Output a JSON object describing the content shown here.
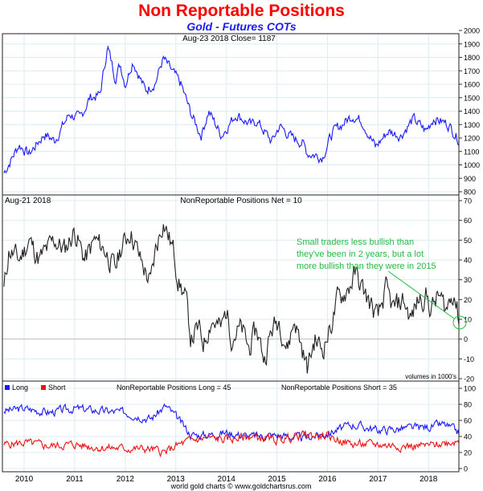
{
  "header": {
    "title": "Non Reportable Positions",
    "subtitle": "Gold - Futures COTs"
  },
  "footer": "world gold charts © www.goldchartsrus.com",
  "colors": {
    "title": "#ff0000",
    "subtitle": "#1a1aff",
    "price": "#1a1aff",
    "net": "#222222",
    "long": "#1a1aff",
    "short": "#ee1111",
    "annotation": "#22bb44",
    "grid": "#dcecf5"
  },
  "chart_data": [
    {
      "type": "line",
      "panel": "price",
      "label": "Aug-23  2018   Close= 1187",
      "ylim": [
        800,
        2000
      ],
      "yticks": [
        800,
        900,
        1000,
        1100,
        1200,
        1300,
        1400,
        1500,
        1600,
        1700,
        1800,
        1900,
        2000
      ],
      "x": [
        2009.6,
        2009.9,
        2010.1,
        2010.4,
        2010.6,
        2010.9,
        2011.1,
        2011.3,
        2011.5,
        2011.65,
        2011.8,
        2011.9,
        2012.0,
        2012.15,
        2012.4,
        2012.6,
        2012.75,
        2012.95,
        2013.1,
        2013.3,
        2013.5,
        2013.65,
        2013.9,
        2014.2,
        2014.5,
        2014.6,
        2014.9,
        2015.05,
        2015.3,
        2015.5,
        2015.6,
        2015.9,
        2016.1,
        2016.5,
        2016.7,
        2016.95,
        2017.2,
        2017.45,
        2017.7,
        2017.95,
        2018.1,
        2018.4,
        2018.6
      ],
      "values": [
        940,
        1150,
        1080,
        1230,
        1180,
        1380,
        1340,
        1500,
        1520,
        1880,
        1650,
        1750,
        1600,
        1780,
        1550,
        1620,
        1790,
        1680,
        1600,
        1380,
        1220,
        1400,
        1220,
        1380,
        1290,
        1330,
        1170,
        1290,
        1200,
        1170,
        1090,
        1060,
        1240,
        1370,
        1320,
        1130,
        1250,
        1220,
        1340,
        1250,
        1350,
        1300,
        1187
      ]
    },
    {
      "type": "line",
      "panel": "net",
      "label_left": "Aug-21  2018",
      "label": "NonReportable Positions Net = 10",
      "ylim": [
        -20,
        70
      ],
      "yticks": [
        -20,
        -10,
        0,
        10,
        20,
        30,
        40,
        50,
        60,
        70
      ],
      "note": "volumes in 1000's",
      "annotation": [
        "Small traders less bullish than",
        "they've been in 2 years, but a lot",
        "more bullish than they were in 2015"
      ],
      "x": [
        2009.6,
        2009.7,
        2009.9,
        2010.1,
        2010.3,
        2010.6,
        2010.8,
        2011.0,
        2011.2,
        2011.4,
        2011.6,
        2011.8,
        2011.9,
        2012.1,
        2012.3,
        2012.5,
        2012.6,
        2012.75,
        2012.95,
        2013.05,
        2013.2,
        2013.3,
        2013.45,
        2013.55,
        2013.7,
        2013.9,
        2014.0,
        2014.1,
        2014.3,
        2014.45,
        2014.6,
        2014.75,
        2014.9,
        2015.05,
        2015.2,
        2015.35,
        2015.5,
        2015.6,
        2015.75,
        2015.9,
        2016.05,
        2016.2,
        2016.4,
        2016.55,
        2016.7,
        2016.9,
        2017.0,
        2017.15,
        2017.3,
        2017.5,
        2017.65,
        2017.8,
        2017.95,
        2018.05,
        2018.2,
        2018.35,
        2018.5,
        2018.6
      ],
      "values": [
        25,
        45,
        40,
        50,
        40,
        50,
        45,
        55,
        40,
        50,
        45,
        35,
        45,
        55,
        40,
        28,
        45,
        60,
        45,
        30,
        20,
        0,
        5,
        -2,
        10,
        5,
        15,
        2,
        5,
        -5,
        5,
        -10,
        5,
        10,
        -5,
        10,
        -5,
        -15,
        0,
        -5,
        5,
        20,
        25,
        33,
        25,
        15,
        10,
        25,
        15,
        20,
        10,
        20,
        22,
        15,
        22,
        15,
        25,
        10
      ]
    },
    {
      "type": "line",
      "panel": "long-short",
      "label_long": "NonReportable Positions Long = 45",
      "label_short": "NonReportable Positions Short = 35",
      "legend": [
        "Long",
        "Short"
      ],
      "ylim": [
        0,
        100
      ],
      "yticks": [
        0,
        20,
        40,
        60,
        80,
        100
      ],
      "xticks": [
        "2010",
        "2011",
        "2012",
        "2013",
        "2014",
        "2015",
        "2016",
        "2017",
        "2018"
      ],
      "x": [
        2009.6,
        2010.0,
        2010.5,
        2011.0,
        2011.5,
        2012.0,
        2012.5,
        2012.8,
        2013.0,
        2013.3,
        2013.6,
        2014.0,
        2014.5,
        2015.0,
        2015.5,
        2016.0,
        2016.5,
        2017.0,
        2017.5,
        2018.0,
        2018.3,
        2018.6
      ],
      "series": [
        {
          "name": "Long",
          "values": [
            72,
            75,
            70,
            75,
            72,
            70,
            62,
            78,
            65,
            42,
            42,
            45,
            40,
            42,
            38,
            44,
            55,
            48,
            50,
            52,
            55,
            45
          ]
        },
        {
          "name": "Short",
          "values": [
            30,
            32,
            28,
            30,
            26,
            25,
            24,
            20,
            28,
            35,
            38,
            36,
            40,
            35,
            42,
            40,
            30,
            30,
            28,
            28,
            32,
            35
          ]
        }
      ]
    }
  ]
}
